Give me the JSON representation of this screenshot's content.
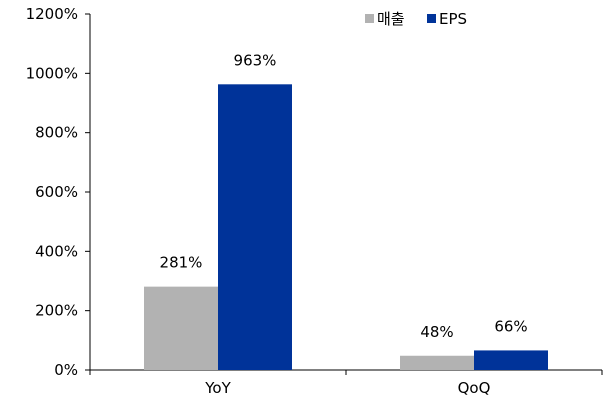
{
  "chart_data": {
    "type": "bar",
    "categories": [
      "YoY",
      "QoQ"
    ],
    "series": [
      {
        "name": "매출",
        "values": [
          281,
          48
        ],
        "labels": [
          "281%",
          "48%"
        ],
        "color": "#b2b2b2"
      },
      {
        "name": "EPS",
        "values": [
          963,
          66
        ],
        "labels": [
          "963%",
          "66%"
        ],
        "color": "#003399"
      }
    ],
    "yticks": [
      0,
      200,
      400,
      600,
      800,
      1000,
      1200
    ],
    "ytick_labels": [
      "0%",
      "200%",
      "400%",
      "600%",
      "800%",
      "1000%",
      "1200%"
    ],
    "ylim": [
      0,
      1200
    ],
    "grid": false,
    "legend": "top-right",
    "title": "",
    "xlabel": "",
    "ylabel": ""
  }
}
